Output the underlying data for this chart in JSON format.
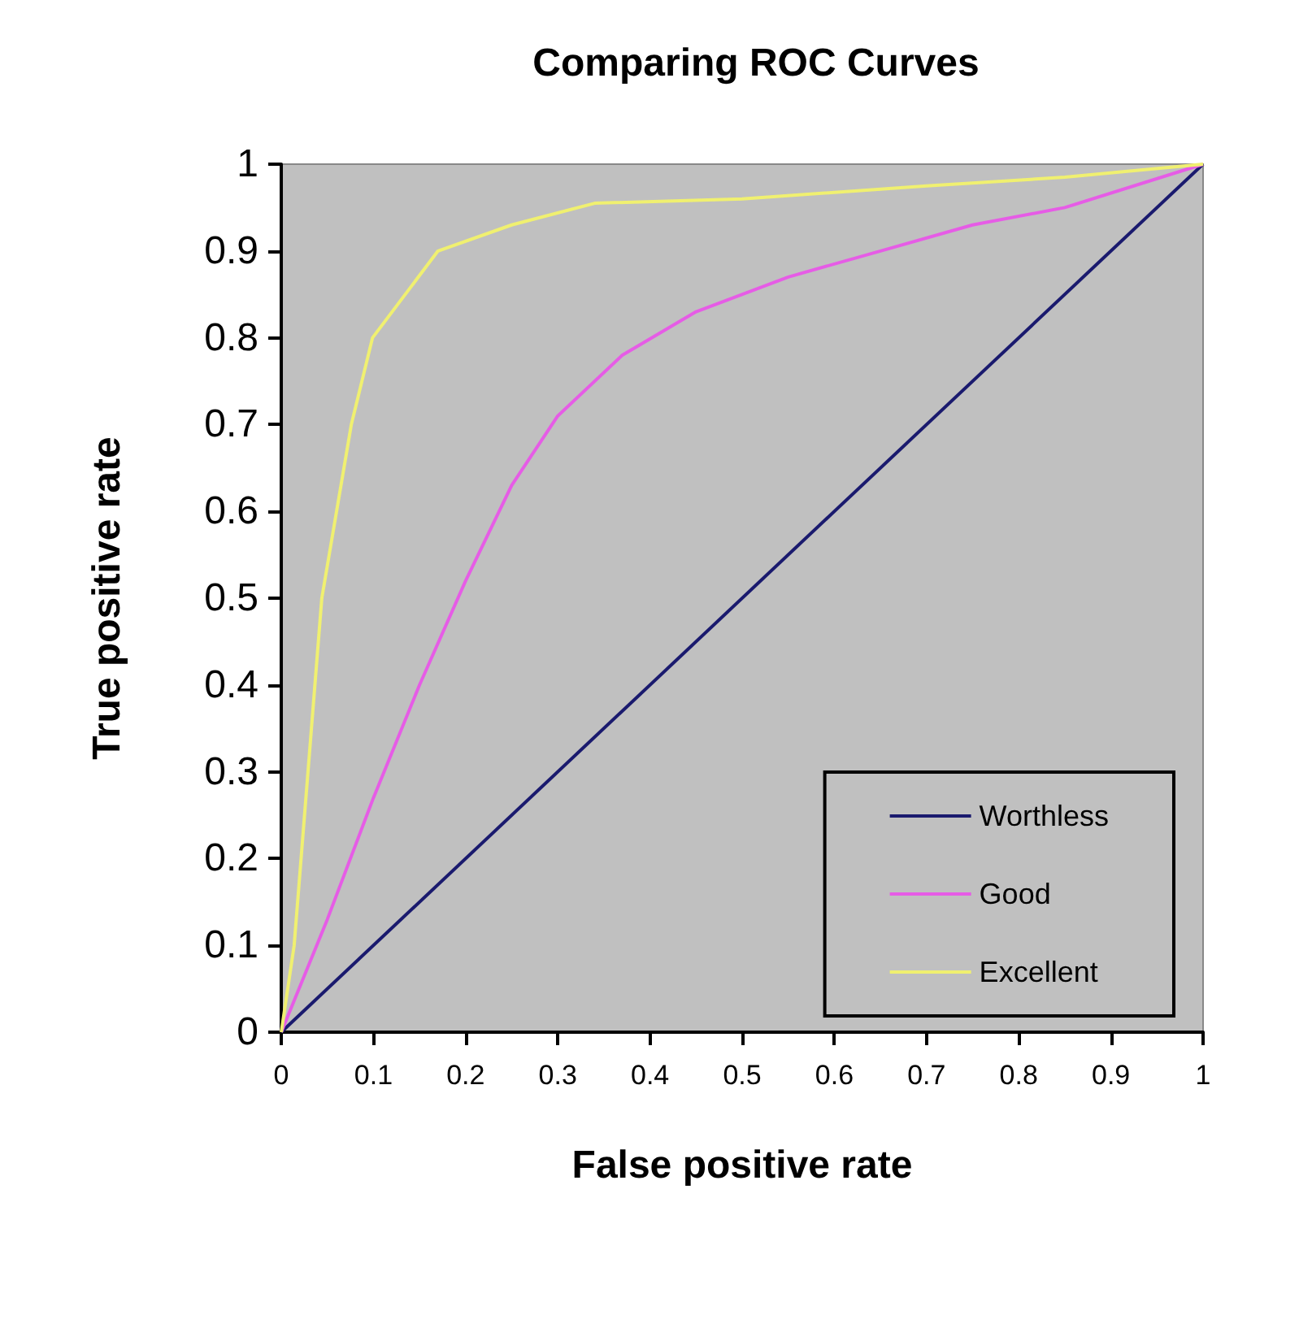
{
  "chart_data": {
    "type": "line",
    "title": "Comparing ROC Curves",
    "xlabel": "False positive rate",
    "ylabel": "True positive rate",
    "xlim": [
      0,
      1
    ],
    "xticks": [
      0,
      0.1,
      0.2,
      0.3,
      0.4,
      0.5,
      0.6,
      0.7,
      0.8,
      0.9,
      1
    ],
    "ylim": [
      0,
      1
    ],
    "yticks": [
      0,
      0.1,
      0.2,
      0.3,
      0.4,
      0.5,
      0.6,
      0.7,
      0.8,
      0.9,
      1
    ],
    "grid": false,
    "legend": "bottom right",
    "marker": "none",
    "line_style": "solid",
    "series": [
      {
        "name": "Worthless",
        "color": "#1a1a6e",
        "x": [
          0,
          1
        ],
        "values": [
          0,
          1
        ]
      },
      {
        "name": "Good",
        "color": "#e65ce6",
        "x": [
          0,
          0.05,
          0.1,
          0.15,
          0.2,
          0.25,
          0.3,
          0.37,
          0.45,
          0.55,
          0.65,
          0.75,
          0.85,
          1
        ],
        "values": [
          0,
          0.13,
          0.27,
          0.4,
          0.52,
          0.63,
          0.71,
          0.78,
          0.83,
          0.87,
          0.9,
          0.93,
          0.95,
          1
        ]
      },
      {
        "name": "Excellent",
        "color": "#f0f070",
        "x": [
          0,
          0.014,
          0.044,
          0.076,
          0.099,
          0.17,
          0.25,
          0.34,
          0.5,
          0.7,
          0.85,
          1
        ],
        "values": [
          0,
          0.1,
          0.5,
          0.7,
          0.8,
          0.9,
          0.93,
          0.955,
          0.96,
          0.975,
          0.985,
          1
        ]
      }
    ]
  }
}
